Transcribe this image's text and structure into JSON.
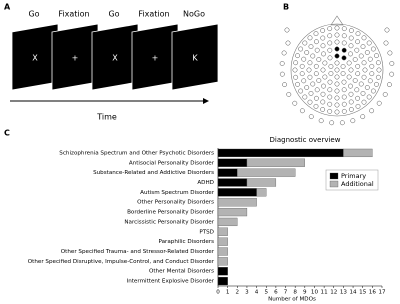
{
  "panels": {
    "a": "A",
    "b": "B",
    "c": "C"
  },
  "task": {
    "labels": [
      "Go",
      "Fixation",
      "Go",
      "Fixation",
      "NoGo"
    ],
    "stimuli": [
      "X",
      "+",
      "X",
      "+",
      "K"
    ],
    "axis_label": "Time"
  },
  "chart_data": {
    "type": "bar",
    "orientation": "horizontal",
    "stacked": true,
    "title": "Diagnostic overview",
    "categories": [
      "Schizophrenia Spectrum and Other Psychotic Disorders",
      "Antisocial Personality Disorder",
      "Substance-Related and Addictive Disorders",
      "ADHD",
      "Autism Spectrum Disorder",
      "Other Personality Disorders",
      "Borderline Personality Disorder",
      "Narcissistic Personality Disorder",
      "PTSD",
      "Paraphilic Disorders",
      "Other Specified Trauma- and Stressor-Related Disorder",
      "Other Specified Disruptive, Impulse-Control, and Conduct Disorder",
      "Other Mental Disorders",
      "Intermittent Explosive Disorder"
    ],
    "series": [
      {
        "name": "Primary",
        "color": "#000000",
        "values": [
          13,
          3,
          2,
          3,
          4,
          0,
          0,
          0,
          0,
          0,
          0,
          0,
          1,
          1
        ]
      },
      {
        "name": "Additional",
        "color": "#b3b3b3",
        "values": [
          3,
          6,
          6,
          3,
          1,
          4,
          3,
          2,
          1,
          1,
          1,
          1,
          0,
          0
        ]
      }
    ],
    "xlabel": "Number of MDOs",
    "xlim": [
      0,
      17
    ],
    "xticks": [
      0,
      1,
      2,
      3,
      4,
      5,
      6,
      7,
      8,
      9,
      10,
      11,
      12,
      13,
      14,
      15,
      16,
      17
    ],
    "legend": "upper right",
    "grid": false
  }
}
